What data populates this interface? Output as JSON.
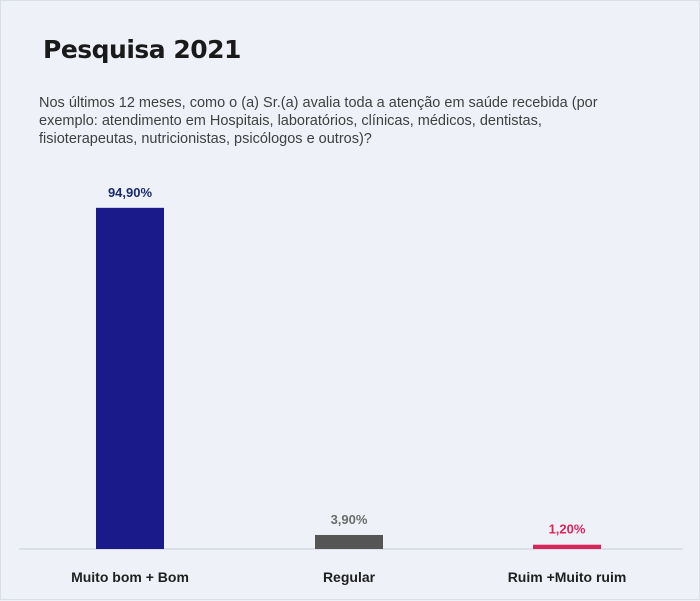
{
  "header": {
    "title": "Pesquisa 2021",
    "question": "Nos últimos 12 meses, como o (a) Sr.(a) avalia toda a atenção em saúde recebida (por exemplo: atendimento em Hospitais, laboratórios, clínicas, médicos, dentistas, fisioterapeutas, nutricionistas, psicólogos e outros)?"
  },
  "chart_data": {
    "type": "bar",
    "categories": [
      "Muito bom + Bom",
      "Regular",
      "Ruim +Muito ruim"
    ],
    "values": [
      94.9,
      3.9,
      1.2
    ],
    "value_labels": [
      "94,90%",
      "3,90%",
      "1,20%"
    ],
    "colors": [
      "#1a1a8a",
      "#555555",
      "#d9265a"
    ],
    "label_colors": [
      "#1a2a6a",
      "#6b6b6b",
      "#d9265a"
    ],
    "baseline_color": "#c8ccd4",
    "ylim": [
      0,
      100
    ],
    "grid": false,
    "legend": "none"
  }
}
